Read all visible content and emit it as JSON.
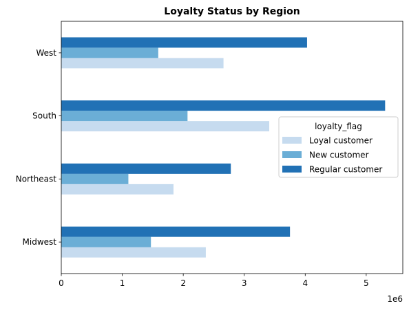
{
  "chart_data": {
    "type": "bar",
    "orientation": "horizontal",
    "title": "Loyalty Status by Region",
    "xlabel": "",
    "ylabel": "",
    "categories": [
      "Midwest",
      "Northeast",
      "South",
      "West"
    ],
    "series": [
      {
        "name": "Loyal customer",
        "color": "#c6dbef",
        "values": [
          2370000,
          1840000,
          3410000,
          2660000
        ]
      },
      {
        "name": "New customer",
        "color": "#6baed6",
        "values": [
          1470000,
          1100000,
          2070000,
          1590000
        ]
      },
      {
        "name": "Regular customer",
        "color": "#2171b5",
        "values": [
          3750000,
          2780000,
          5310000,
          4030000
        ]
      }
    ],
    "xlim": [
      0,
      5600000
    ],
    "x_ticks": [
      0,
      1000000,
      2000000,
      3000000,
      4000000,
      5000000
    ],
    "x_tick_labels": [
      "0",
      "1",
      "2",
      "3",
      "4",
      "5"
    ],
    "x_offset_label": "1e6",
    "grid": false,
    "legend": {
      "title": "loyalty_flag",
      "position": "center-right"
    }
  }
}
